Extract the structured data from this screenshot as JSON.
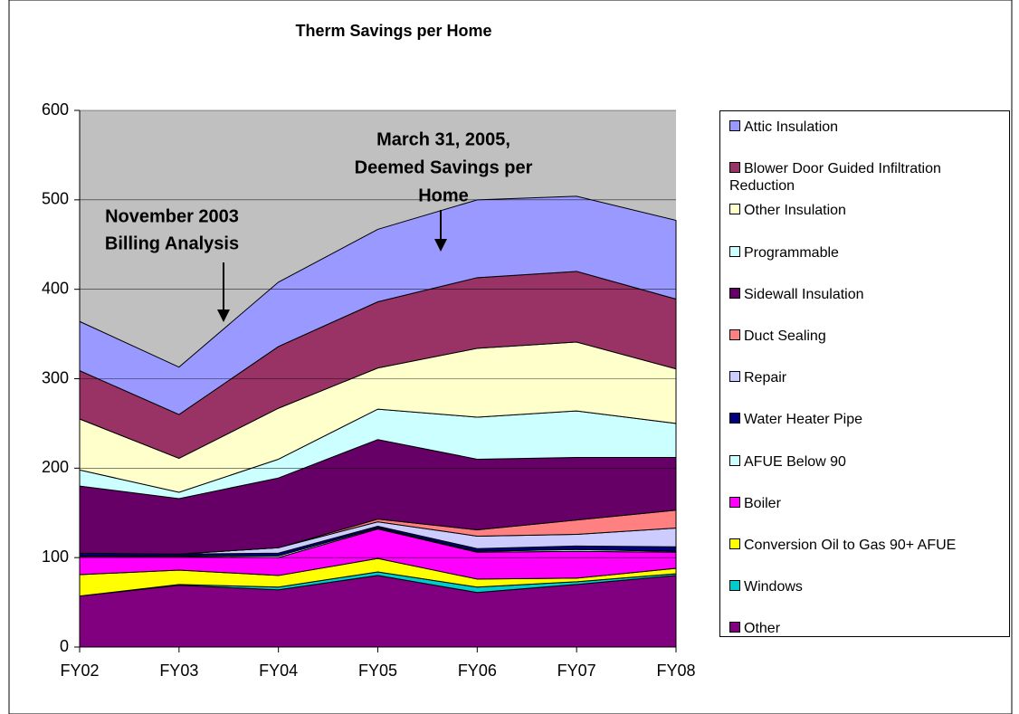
{
  "chart_data": {
    "type": "stacked_area",
    "title": "Therm Savings per Home",
    "categories": [
      "FY02",
      "FY03",
      "FY04",
      "FY05",
      "FY06",
      "FY07",
      "FY08"
    ],
    "ylim": [
      0,
      600
    ],
    "yticks": [
      0,
      100,
      200,
      300,
      400,
      500,
      600
    ],
    "grid": true,
    "legend": "right",
    "annotations": [
      {
        "lines": [
          "November 2003",
          "Billing Analysis"
        ]
      },
      {
        "lines": [
          "March 31, 2005,",
          "Deemed Savings per",
          "Home"
        ]
      }
    ],
    "series": [
      {
        "name": "Other",
        "color": "#800080",
        "values": [
          57,
          69,
          64,
          80,
          61,
          70,
          80
        ]
      },
      {
        "name": "Windows",
        "color": "#00cccc",
        "values": [
          0,
          1,
          3,
          4,
          6,
          3,
          2
        ]
      },
      {
        "name": "Conversion Oil to Gas 90+ AFUE",
        "color": "#ffff00",
        "values": [
          24,
          16,
          13,
          15,
          9,
          4,
          6
        ]
      },
      {
        "name": "Boiler",
        "color": "#ff00ff",
        "values": [
          20,
          15,
          20,
          33,
          30,
          30,
          18
        ]
      },
      {
        "name": "AFUE Below 90",
        "color": "#ccffff",
        "values": [
          1,
          1,
          2,
          1,
          1,
          2,
          1
        ]
      },
      {
        "name": "Water Heater Pipe",
        "color": "#000080",
        "values": [
          3,
          2,
          3,
          2,
          3,
          4,
          5
        ]
      },
      {
        "name": "Repair",
        "color": "#ccccff",
        "values": [
          0,
          0,
          6,
          5,
          14,
          13,
          21
        ]
      },
      {
        "name": "Duct Sealing",
        "color": "#ff8080",
        "values": [
          0,
          0,
          0,
          3,
          7,
          16,
          20
        ]
      },
      {
        "name": "Sidewall Insulation",
        "color": "#660066",
        "values": [
          75,
          62,
          78,
          89,
          79,
          70,
          59
        ]
      },
      {
        "name": "Programmable",
        "color": "#ccffff",
        "values": [
          18,
          7,
          21,
          34,
          47,
          52,
          38
        ]
      },
      {
        "name": "Other Insulation",
        "color": "#ffffcc",
        "values": [
          57,
          38,
          57,
          46,
          77,
          77,
          61
        ]
      },
      {
        "name": "Blower Door Guided Infiltration Reduction",
        "color": "#993366",
        "values": [
          54,
          49,
          69,
          74,
          79,
          79,
          78
        ]
      },
      {
        "name": "Attic Insulation",
        "color": "#9999ff",
        "values": [
          55,
          53,
          72,
          81,
          87,
          84,
          88
        ]
      }
    ]
  }
}
